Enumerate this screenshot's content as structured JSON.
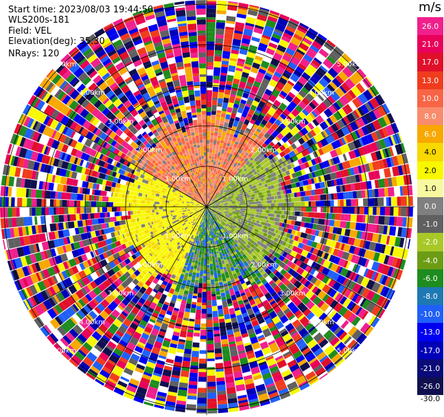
{
  "header": {
    "start_time": "Start time: 2023/08/03 19:44:50",
    "instrument": "WLS200s-181",
    "field": "Field: VEL",
    "elevation": "Elevation(deg): 35.30",
    "nrays": "NRays: 120"
  },
  "colorbar": {
    "unit": "m/s",
    "levels": [
      {
        "label": "26.0",
        "color": "#f0208c"
      },
      {
        "label": "21.0",
        "color": "#e8005a"
      },
      {
        "label": "17.0",
        "color": "#e0102a"
      },
      {
        "label": "13.0",
        "color": "#f03c1e"
      },
      {
        "label": "10.0",
        "color": "#f86446"
      },
      {
        "label": "8.0",
        "color": "#f88c6c"
      },
      {
        "label": "6.0",
        "color": "#f8a800"
      },
      {
        "label": "4.0",
        "color": "#f8d800"
      },
      {
        "label": "2.0",
        "color": "#f8f800"
      },
      {
        "label": "1.0",
        "color": "#f8f8a0"
      },
      {
        "label": "0.0",
        "color": "#808080"
      },
      {
        "label": "-1.0",
        "color": "#606060"
      },
      {
        "label": "-2.0",
        "color": "#a8c828"
      },
      {
        "label": "-4.0",
        "color": "#6c9c14"
      },
      {
        "label": "-6.0",
        "color": "#1e8c1e"
      },
      {
        "label": "-8.0",
        "color": "#1e78b4"
      },
      {
        "label": "-10.0",
        "color": "#2060f8"
      },
      {
        "label": "-13.0",
        "color": "#0000f0"
      },
      {
        "label": "-17.0",
        "color": "#0000b8"
      },
      {
        "label": "-21.0",
        "color": "#0a0a78"
      },
      {
        "label": "-26.0",
        "color": "#101050"
      },
      {
        "label": "-30.0",
        "color": "#ffffff"
      }
    ]
  },
  "range_rings": [
    {
      "label": "1.00km",
      "r": 1
    },
    {
      "label": "2.00km",
      "r": 2
    },
    {
      "label": "3.00km",
      "r": 3
    },
    {
      "label": "4.00km",
      "r": 4
    },
    {
      "label": "5.00km",
      "r": 5
    }
  ],
  "chart_data": {
    "type": "heatmap",
    "projection": "polar PPI",
    "field": "VEL",
    "units": "m/s",
    "max_range_km": 5.1,
    "n_rays": 120,
    "range_ring_labels": [
      "1.00km",
      "2.00km",
      "3.00km",
      "4.00km",
      "5.00km"
    ],
    "regions": [
      {
        "sector": "north",
        "azimuth_deg": [
          300,
          40
        ],
        "range_km": [
          0,
          2.2
        ],
        "velocity_ms": [
          6,
          10
        ]
      },
      {
        "sector": "west",
        "azimuth_deg": [
          200,
          300
        ],
        "range_km": [
          0,
          2.2
        ],
        "velocity_ms": [
          1,
          2
        ]
      },
      {
        "sector": "east",
        "azimuth_deg": [
          40,
          140
        ],
        "range_km": [
          0,
          2.0
        ],
        "velocity_ms": [
          -2,
          0
        ]
      },
      {
        "sector": "south",
        "azimuth_deg": [
          140,
          200
        ],
        "range_km": [
          0,
          2.0
        ],
        "velocity_ms": [
          -8,
          -4
        ]
      },
      {
        "sector": "outer",
        "azimuth_deg": [
          0,
          360
        ],
        "range_km": [
          2.2,
          5.1
        ],
        "velocity_ms": "noise (-30 to 26)"
      }
    ]
  }
}
